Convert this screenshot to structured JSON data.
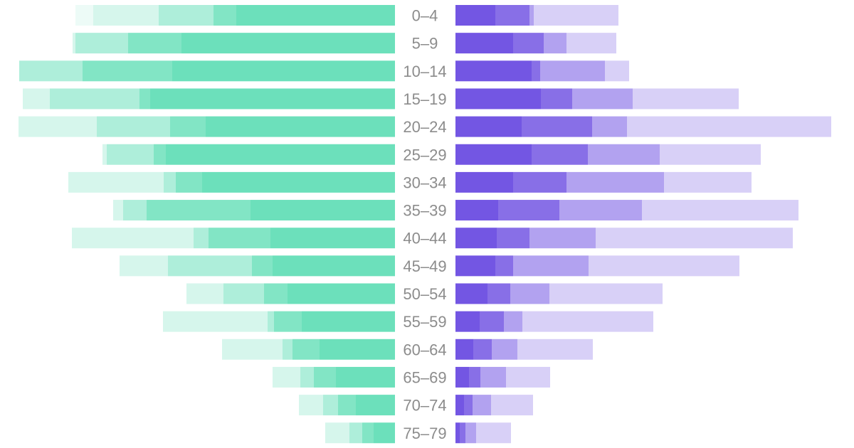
{
  "chart_data": {
    "type": "bar",
    "layout": "population-pyramid",
    "categories": [
      "0–4",
      "5–9",
      "10–14",
      "15–19",
      "20–24",
      "25–29",
      "30–34",
      "35–39",
      "40–44",
      "45–49",
      "50–54",
      "55–59",
      "60–64",
      "65–69",
      "70–74",
      "75–79"
    ],
    "left": {
      "color": "#6ce0bb",
      "stacks": [
        [
          223,
          32,
          77,
          92,
          25
        ],
        [
          300,
          75,
          74,
          4,
          0
        ],
        [
          313,
          126,
          89,
          0,
          0
        ],
        [
          344,
          15,
          126,
          38,
          0
        ],
        [
          266,
          50,
          103,
          110,
          0
        ],
        [
          322,
          17,
          66,
          6,
          0
        ],
        [
          271,
          37,
          17,
          134,
          0
        ],
        [
          203,
          146,
          33,
          14,
          0
        ],
        [
          175,
          87,
          21,
          171,
          0
        ],
        [
          172,
          29,
          118,
          68,
          0
        ],
        [
          151,
          33,
          57,
          52,
          0
        ],
        [
          131,
          39,
          9,
          147,
          0
        ],
        [
          106,
          38,
          14,
          85,
          0
        ],
        [
          83,
          31,
          19,
          39,
          0
        ],
        [
          55,
          25,
          21,
          34,
          0
        ],
        [
          30,
          16,
          18,
          34,
          0
        ]
      ]
    },
    "right": {
      "color": "#7356e3",
      "stacks": [
        [
          56,
          48,
          6,
          119
        ],
        [
          81,
          43,
          32,
          70
        ],
        [
          107,
          12,
          91,
          34
        ],
        [
          120,
          44,
          85,
          149
        ],
        [
          93,
          99,
          49,
          287
        ],
        [
          107,
          79,
          101,
          142
        ],
        [
          81,
          75,
          137,
          123
        ],
        [
          60,
          86,
          116,
          220
        ],
        [
          58,
          46,
          93,
          277
        ],
        [
          56,
          25,
          106,
          212
        ],
        [
          45,
          32,
          55,
          159
        ],
        [
          34,
          34,
          26,
          184
        ],
        [
          25,
          26,
          36,
          106
        ],
        [
          19,
          16,
          36,
          62
        ],
        [
          12,
          12,
          26,
          59
        ],
        [
          6,
          8,
          15,
          49
        ]
      ]
    },
    "layer_opacity": [
      1.0,
      0.85,
      0.55,
      0.28,
      0.12
    ]
  }
}
